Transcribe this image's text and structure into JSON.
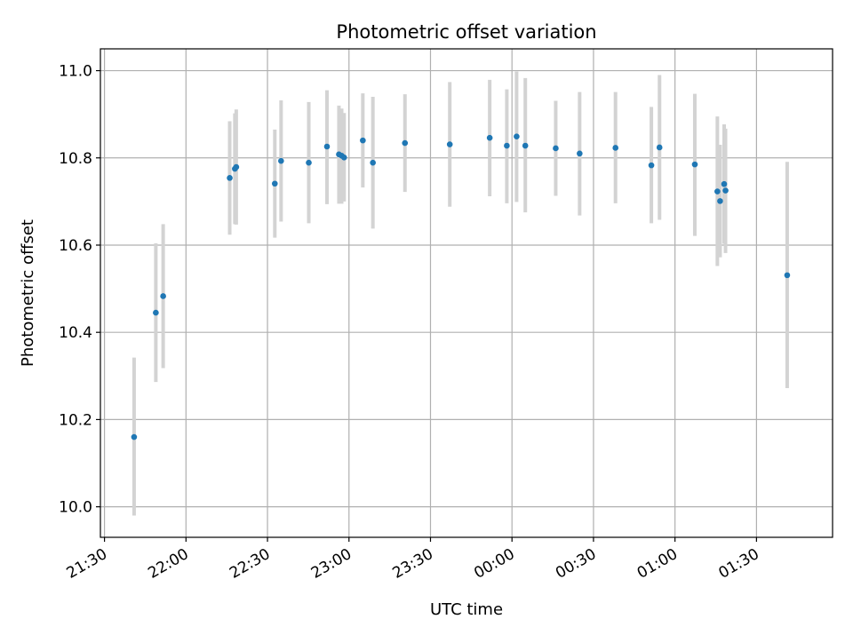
{
  "chart_data": {
    "type": "scatter",
    "title": "Photometric offset variation",
    "xlabel": "UTC time",
    "ylabel": "Photometric offset",
    "x_unit": "minutes after 21:30 UTC",
    "xlim": [
      -1.5,
      268
    ],
    "ylim": [
      9.93,
      11.05
    ],
    "grid": true,
    "legend": "none",
    "x_ticks": [
      {
        "value": 0,
        "label": "21:30"
      },
      {
        "value": 30,
        "label": "22:00"
      },
      {
        "value": 60,
        "label": "22:30"
      },
      {
        "value": 90,
        "label": "23:00"
      },
      {
        "value": 120,
        "label": "23:30"
      },
      {
        "value": 150,
        "label": "00:00"
      },
      {
        "value": 180,
        "label": "00:30"
      },
      {
        "value": 210,
        "label": "01:00"
      },
      {
        "value": 240,
        "label": "01:30"
      }
    ],
    "y_ticks": [
      {
        "value": 10.0,
        "label": "10.0"
      },
      {
        "value": 10.2,
        "label": "10.2"
      },
      {
        "value": 10.4,
        "label": "10.4"
      },
      {
        "value": 10.6,
        "label": "10.6"
      },
      {
        "value": 10.8,
        "label": "10.8"
      },
      {
        "value": 11.0,
        "label": "11.0"
      }
    ],
    "series": [
      {
        "marker_color": "#1f77b4",
        "errorbar_color": "#d3d3d3",
        "points": [
          {
            "x": 10.9,
            "y": 10.16,
            "ylo": 9.98,
            "yhi": 10.342
          },
          {
            "x": 18.9,
            "y": 10.445,
            "ylo": 10.286,
            "yhi": 10.604
          },
          {
            "x": 21.6,
            "y": 10.483,
            "ylo": 10.318,
            "yhi": 10.648
          },
          {
            "x": 46.1,
            "y": 10.754,
            "ylo": 10.624,
            "yhi": 10.884
          },
          {
            "x": 48.0,
            "y": 10.775,
            "ylo": 10.648,
            "yhi": 10.902
          },
          {
            "x": 48.5,
            "y": 10.779,
            "ylo": 10.647,
            "yhi": 10.911
          },
          {
            "x": 62.7,
            "y": 10.741,
            "ylo": 10.617,
            "yhi": 10.865
          },
          {
            "x": 65.0,
            "y": 10.793,
            "ylo": 10.654,
            "yhi": 10.932
          },
          {
            "x": 75.2,
            "y": 10.789,
            "ylo": 10.65,
            "yhi": 10.928
          },
          {
            "x": 81.9,
            "y": 10.826,
            "ylo": 10.694,
            "yhi": 10.955
          },
          {
            "x": 86.3,
            "y": 10.808,
            "ylo": 10.695,
            "yhi": 10.92
          },
          {
            "x": 87.3,
            "y": 10.805,
            "ylo": 10.695,
            "yhi": 10.913
          },
          {
            "x": 88.2,
            "y": 10.801,
            "ylo": 10.7,
            "yhi": 10.903
          },
          {
            "x": 95.1,
            "y": 10.84,
            "ylo": 10.732,
            "yhi": 10.948
          },
          {
            "x": 98.8,
            "y": 10.789,
            "ylo": 10.638,
            "yhi": 10.94
          },
          {
            "x": 110.6,
            "y": 10.834,
            "ylo": 10.722,
            "yhi": 10.946
          },
          {
            "x": 127.1,
            "y": 10.831,
            "ylo": 10.688,
            "yhi": 10.974
          },
          {
            "x": 141.8,
            "y": 10.846,
            "ylo": 10.712,
            "yhi": 10.979
          },
          {
            "x": 148.1,
            "y": 10.828,
            "ylo": 10.696,
            "yhi": 10.957
          },
          {
            "x": 151.7,
            "y": 10.849,
            "ylo": 10.699,
            "yhi": 10.998
          },
          {
            "x": 154.9,
            "y": 10.828,
            "ylo": 10.675,
            "yhi": 10.983
          },
          {
            "x": 166.1,
            "y": 10.822,
            "ylo": 10.713,
            "yhi": 10.931
          },
          {
            "x": 174.9,
            "y": 10.81,
            "ylo": 10.668,
            "yhi": 10.951
          },
          {
            "x": 188.1,
            "y": 10.823,
            "ylo": 10.696,
            "yhi": 10.951
          },
          {
            "x": 201.3,
            "y": 10.783,
            "ylo": 10.65,
            "yhi": 10.917
          },
          {
            "x": 204.3,
            "y": 10.824,
            "ylo": 10.658,
            "yhi": 10.99
          },
          {
            "x": 217.3,
            "y": 10.785,
            "ylo": 10.621,
            "yhi": 10.947
          },
          {
            "x": 225.6,
            "y": 10.723,
            "ylo": 10.552,
            "yhi": 10.895
          },
          {
            "x": 226.6,
            "y": 10.701,
            "ylo": 10.572,
            "yhi": 10.83
          },
          {
            "x": 228.1,
            "y": 10.74,
            "ylo": 10.603,
            "yhi": 10.877
          },
          {
            "x": 228.6,
            "y": 10.725,
            "ylo": 10.582,
            "yhi": 10.867
          },
          {
            "x": 251.3,
            "y": 10.531,
            "ylo": 10.272,
            "yhi": 10.791
          }
        ]
      }
    ]
  }
}
